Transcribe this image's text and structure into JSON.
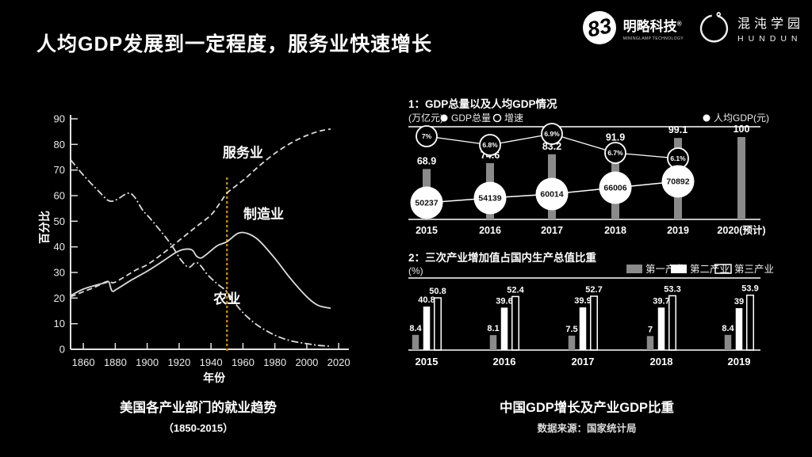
{
  "header": {
    "title": "人均GDP发展到一定程度，服务业快速增长",
    "logos": [
      {
        "name": "明略科技",
        "reg": "®",
        "subtitle": "MININGLAMP TECHNOLOGY",
        "mark": "83"
      },
      {
        "name": "混沌学园",
        "subtitle": "HUNDUN"
      }
    ]
  },
  "captions": {
    "left": {
      "title": "美国各产业部门的就业趋势",
      "subtitle": "（1850-2015）"
    },
    "right": {
      "title": "中国GDP增长及产业GDP比重",
      "subtitle": "数据来源：国家统计局"
    }
  },
  "colors": {
    "background": "#000000",
    "text": "#ffffff",
    "line_gray": "#dcdcdc",
    "bar_gray": "#8a8a8a",
    "marker_line": "#b8860b"
  },
  "chart_data": [
    {
      "id": "us_employment",
      "type": "line",
      "title": "美国各产业部门的就业趋势（1850-2015）",
      "xlabel": "年份",
      "ylabel": "百分比",
      "xlim": [
        1852,
        2020
      ],
      "ylim": [
        0,
        90
      ],
      "xticks": [
        1860,
        1880,
        1900,
        1920,
        1940,
        1960,
        1980,
        2000,
        2020
      ],
      "yticks": [
        0,
        10,
        20,
        30,
        40,
        50,
        60,
        70,
        80,
        90
      ],
      "grid": false,
      "marker_line": {
        "x": 1950,
        "color": "#b8860b",
        "style": "dotted"
      },
      "series": [
        {
          "name": "服务业",
          "style": "dashed",
          "label_pos": [
            1960,
            75
          ],
          "points": [
            [
              1852,
              20.5
            ],
            [
              1860,
              22.5
            ],
            [
              1868,
              24.5
            ],
            [
              1875,
              26.5
            ],
            [
              1879,
              26
            ],
            [
              1885,
              28
            ],
            [
              1893,
              31
            ],
            [
              1900,
              33
            ],
            [
              1910,
              37.5
            ],
            [
              1920,
              42.5
            ],
            [
              1930,
              47.5
            ],
            [
              1940,
              52.5
            ],
            [
              1946,
              57.5
            ],
            [
              1950,
              61
            ],
            [
              1956,
              64
            ],
            [
              1962,
              67
            ],
            [
              1970,
              71.5
            ],
            [
              1980,
              76.5
            ],
            [
              1990,
              80.5
            ],
            [
              2000,
              83.5
            ],
            [
              2008,
              85.2
            ],
            [
              2015,
              86
            ]
          ]
        },
        {
          "name": "制造业",
          "style": "solid",
          "label_pos": [
            1973,
            51
          ],
          "points": [
            [
              1852,
              21
            ],
            [
              1860,
              23.5
            ],
            [
              1869,
              25.2
            ],
            [
              1874,
              26
            ],
            [
              1876,
              26.3
            ],
            [
              1878,
              22.8
            ],
            [
              1881,
              23.5
            ],
            [
              1890,
              27
            ],
            [
              1900,
              30.5
            ],
            [
              1910,
              34.5
            ],
            [
              1918,
              37.8
            ],
            [
              1923,
              39
            ],
            [
              1928,
              38.8
            ],
            [
              1931,
              36.3
            ],
            [
              1934,
              35.7
            ],
            [
              1938,
              37.5
            ],
            [
              1944,
              40.5
            ],
            [
              1950,
              42
            ],
            [
              1957,
              45.3
            ],
            [
              1963,
              45.2
            ],
            [
              1970,
              42.5
            ],
            [
              1980,
              35.5
            ],
            [
              1990,
              27.5
            ],
            [
              2000,
              20.5
            ],
            [
              2007,
              17.2
            ],
            [
              2015,
              16
            ]
          ]
        },
        {
          "name": "农业",
          "style": "dashdot",
          "label_pos": [
            1950,
            18
          ],
          "points": [
            [
              1852,
              74
            ],
            [
              1860,
              68
            ],
            [
              1870,
              61.5
            ],
            [
              1876,
              58
            ],
            [
              1881,
              58.5
            ],
            [
              1888,
              61
            ],
            [
              1892,
              59.5
            ],
            [
              1897,
              54.5
            ],
            [
              1902,
              51
            ],
            [
              1910,
              45
            ],
            [
              1916,
              40
            ],
            [
              1921,
              35
            ],
            [
              1926,
              32
            ],
            [
              1930,
              33.8
            ],
            [
              1933,
              33
            ],
            [
              1938,
              29
            ],
            [
              1944,
              25.5
            ],
            [
              1950,
              22.5
            ],
            [
              1957,
              16.5
            ],
            [
              1963,
              12.5
            ],
            [
              1970,
              9
            ],
            [
              1980,
              5.5
            ],
            [
              1990,
              3.3
            ],
            [
              2000,
              2.2
            ],
            [
              2008,
              1.5
            ],
            [
              2015,
              1.2
            ]
          ]
        }
      ]
    },
    {
      "id": "china_gdp",
      "type": "bar+line",
      "title": "1：GDP总量以及人均GDP情况",
      "unit": "(万亿元)",
      "legend": [
        "GDP总量",
        "增速",
        "人均GDP(元)"
      ],
      "categories": [
        "2015",
        "2016",
        "2017",
        "2018",
        "2019",
        "2020(预计)"
      ],
      "gdp_total": [
        68.9,
        74.6,
        83.2,
        91.9,
        99.1,
        100
      ],
      "growth_rate": [
        "7%",
        "6.8%",
        "6.9%",
        "6.7%",
        "6.1%"
      ],
      "gdp_per_capita": [
        50237,
        54139,
        60014,
        66006,
        70892
      ]
    },
    {
      "id": "industry_share",
      "type": "bar",
      "title": "2：三次产业增加值占国内生产总值比重",
      "unit": "(%)",
      "categories": [
        "2015",
        "2016",
        "2017",
        "2018",
        "2019"
      ],
      "series": [
        {
          "name": "第一产业",
          "fill": "gray",
          "values": [
            8.4,
            8.1,
            7.5,
            7,
            8.4
          ]
        },
        {
          "name": "第二产业",
          "fill": "white",
          "values": [
            40.8,
            39.6,
            39.9,
            39.7,
            39
          ]
        },
        {
          "name": "第三产业",
          "fill": "outline",
          "values": [
            50.8,
            52.4,
            52.7,
            53.3,
            53.9
          ]
        }
      ]
    }
  ]
}
